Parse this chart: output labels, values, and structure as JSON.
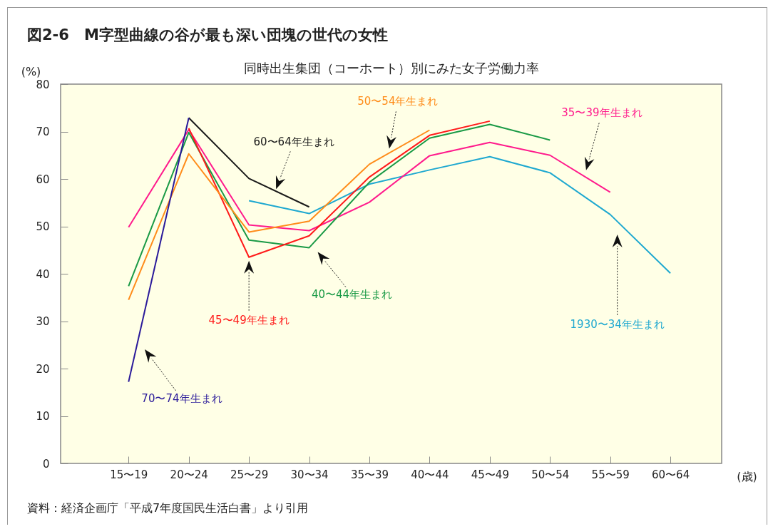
{
  "chart_data": {
    "type": "line",
    "title": "図2-6　M字型曲線の谷が最も深い団塊の世代の女性",
    "subtitle": "同時出生集団（コーホート）別にみた女子労働力率",
    "ylabel": "(%)",
    "xlabel": "(歳)",
    "annotations": [
      "資料：経済企画庁「平成7年度国民生活白書」より引用"
    ],
    "categories": [
      "15〜19",
      "20〜24",
      "25〜29",
      "30〜34",
      "35〜39",
      "40〜44",
      "45〜49",
      "50〜54",
      "55〜59",
      "60〜64"
    ],
    "series": [
      {
        "name": "1930〜34年生まれ",
        "color": "#1ea8d0",
        "values": [
          null,
          null,
          55.4,
          52.7,
          58.9,
          61.9,
          64.7,
          61.3,
          52.5,
          40.1
        ]
      },
      {
        "name": "35〜39年生まれ",
        "color": "#ff1a8c",
        "values": [
          49.8,
          70.4,
          50.3,
          49.1,
          55.1,
          64.9,
          67.7,
          65.0,
          57.2,
          null
        ]
      },
      {
        "name": "40〜44年生まれ",
        "color": "#1a9a46",
        "values": [
          37.4,
          69.8,
          47.1,
          45.5,
          59.3,
          68.6,
          71.5,
          68.2,
          null,
          null
        ]
      },
      {
        "name": "45〜49年生まれ",
        "color": "#ff1a1a",
        "values": [
          null,
          70.7,
          43.5,
          48.0,
          60.4,
          69.2,
          72.2,
          null,
          null,
          null
        ]
      },
      {
        "name": "50〜54年生まれ",
        "color": "#ff8c1a",
        "values": [
          34.5,
          65.3,
          48.8,
          51.1,
          63.1,
          70.3,
          null,
          null,
          null,
          null
        ]
      },
      {
        "name": "60〜64年生まれ",
        "color": "#1a1a1a",
        "values": [
          null,
          72.9,
          60.1,
          54.1,
          null,
          null,
          null,
          null,
          null,
          null
        ]
      },
      {
        "name": "70〜74年生まれ",
        "color": "#2a1a9a",
        "values": [
          17.2,
          72.9,
          null,
          null,
          null,
          null,
          null,
          null,
          null,
          null
        ]
      }
    ],
    "ylim": [
      0,
      80
    ],
    "yticks": [
      0,
      10,
      20,
      30,
      40,
      50,
      60,
      70,
      80
    ],
    "grid": false
  }
}
